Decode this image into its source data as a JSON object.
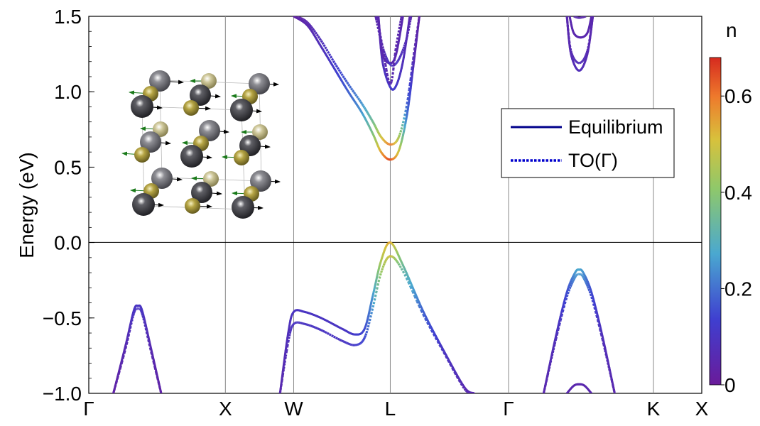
{
  "chart_data": {
    "type": "line",
    "title": "",
    "ylabel": "Energy (eV)",
    "xlabel": "",
    "ylim": [
      -1.0,
      1.5
    ],
    "yticks": [
      -1.0,
      -0.5,
      0.0,
      0.5,
      1.0,
      1.5
    ],
    "ytick_labels": [
      "−1.0",
      "−0.5",
      "0.0",
      "0.5",
      "1.0",
      "1.5"
    ],
    "kpath": [
      {
        "label": "Γ",
        "pos": 0.0
      },
      {
        "label": "X",
        "pos": 1.0
      },
      {
        "label": "W",
        "pos": 1.5
      },
      {
        "label": "L",
        "pos": 2.2071
      },
      {
        "label": "Γ",
        "pos": 3.0731
      },
      {
        "label": "K",
        "pos": 4.1338
      },
      {
        "label": "X",
        "pos": 4.4874
      }
    ],
    "colorbar": {
      "label": "n",
      "range": [
        0,
        0.68
      ],
      "ticks": [
        0,
        0.2,
        0.4,
        0.6
      ],
      "tick_labels": [
        "0",
        "0.2",
        "0.4",
        "0.6"
      ],
      "colormap": "rainbow"
    },
    "legend": {
      "position": "right-upper",
      "entries": [
        {
          "label": "Equilibrium",
          "style": "solid",
          "color": "#00008b"
        },
        {
          "label": "TO(Γ)",
          "style": "dotted",
          "color": "#0000cd"
        }
      ]
    },
    "series": [
      {
        "name": "Equilibrium",
        "style": "solid",
        "bands": [
          {
            "x": [
              0.18,
              0.27,
              0.33,
              0.36,
              0.39,
              0.45,
              0.53
            ],
            "y": [
              -1.0,
              -0.68,
              -0.45,
              -0.42,
              -0.45,
              -0.68,
              -1.0
            ],
            "n": [
              0.03,
              0.06,
              0.1,
              0.1,
              0.1,
              0.06,
              0.03
            ]
          },
          {
            "x": [
              1.4,
              1.46,
              1.5,
              1.58,
              1.7,
              1.85,
              1.95,
              2.02,
              2.08,
              2.14,
              2.2071,
              2.3,
              2.45,
              2.6,
              2.75,
              2.82
            ],
            "y": [
              -1.0,
              -0.6,
              -0.46,
              -0.46,
              -0.5,
              -0.57,
              -0.61,
              -0.57,
              -0.35,
              -0.12,
              0.0,
              -0.15,
              -0.46,
              -0.72,
              -0.96,
              -1.0
            ],
            "n": [
              0.05,
              0.08,
              0.1,
              0.1,
              0.1,
              0.1,
              0.12,
              0.15,
              0.25,
              0.45,
              0.55,
              0.35,
              0.18,
              0.1,
              0.06,
              0.05
            ]
          },
          {
            "x": [
              3.33,
              3.42,
              3.5,
              3.56,
              3.59,
              3.62,
              3.68,
              3.76,
              3.85
            ],
            "y": [
              -1.0,
              -0.62,
              -0.33,
              -0.2,
              -0.18,
              -0.2,
              -0.33,
              -0.62,
              -1.0
            ],
            "n": [
              0.05,
              0.08,
              0.15,
              0.25,
              0.28,
              0.25,
              0.15,
              0.08,
              0.05
            ]
          },
          {
            "x": [
              3.5,
              3.55,
              3.59,
              3.63,
              3.68
            ],
            "y": [
              -1.0,
              -0.95,
              -0.94,
              -0.95,
              -1.0
            ],
            "n": [
              0.05,
              0.05,
              0.05,
              0.05,
              0.05
            ]
          },
          {
            "x": [
              1.5,
              1.6,
              1.7,
              1.8,
              1.9,
              2.0,
              2.08,
              2.14,
              2.2071,
              2.27,
              2.33,
              2.38,
              2.42
            ],
            "y": [
              1.5,
              1.44,
              1.3,
              1.15,
              1.0,
              0.86,
              0.72,
              0.6,
              0.55,
              0.61,
              0.85,
              1.2,
              1.5
            ],
            "n": [
              0.03,
              0.05,
              0.08,
              0.12,
              0.18,
              0.25,
              0.38,
              0.55,
              0.65,
              0.5,
              0.2,
              0.06,
              0.03
            ]
          },
          {
            "x": [
              2.12,
              2.15,
              2.2071,
              2.25,
              2.3,
              2.35
            ],
            "y": [
              1.5,
              1.2,
              1.03,
              1.04,
              1.2,
              1.5
            ],
            "n": [
              0.05,
              0.08,
              0.12,
              0.12,
              0.08,
              0.05
            ]
          },
          {
            "x": [
              2.12,
              2.15,
              2.2071,
              2.25,
              2.3
            ],
            "y": [
              1.5,
              1.25,
              1.19,
              1.25,
              1.5
            ],
            "n": [
              0.05,
              0.05,
              0.05,
              0.05,
              0.05
            ]
          },
          {
            "x": [
              3.5,
              3.53,
              3.59,
              3.65,
              3.69
            ],
            "y": [
              1.5,
              1.25,
              1.14,
              1.25,
              1.5
            ],
            "n": [
              0.05,
              0.06,
              0.08,
              0.06,
              0.05
            ]
          },
          {
            "x": [
              3.52,
              3.55,
              3.6,
              3.65,
              3.68
            ],
            "y": [
              1.5,
              1.39,
              1.36,
              1.39,
              1.5
            ],
            "n": [
              0.05,
              0.05,
              0.05,
              0.05,
              0.05
            ]
          }
        ]
      },
      {
        "name": "TO(Γ)",
        "style": "dotted",
        "bands": [
          {
            "x": [
              0.18,
              0.27,
              0.33,
              0.36,
              0.39,
              0.45,
              0.53
            ],
            "y": [
              -1.0,
              -0.7,
              -0.47,
              -0.44,
              -0.47,
              -0.7,
              -1.0
            ],
            "n": [
              0.03,
              0.06,
              0.1,
              0.1,
              0.1,
              0.06,
              0.03
            ]
          },
          {
            "x": [
              1.4,
              1.46,
              1.5,
              1.58,
              1.7,
              1.85,
              1.95,
              2.02,
              2.08,
              2.14,
              2.2071,
              2.3,
              2.45,
              2.6,
              2.75,
              2.82
            ],
            "y": [
              -1.0,
              -0.66,
              -0.54,
              -0.54,
              -0.58,
              -0.65,
              -0.68,
              -0.63,
              -0.43,
              -0.2,
              -0.09,
              -0.19,
              -0.48,
              -0.73,
              -0.97,
              -1.0
            ],
            "n": [
              0.05,
              0.08,
              0.1,
              0.1,
              0.1,
              0.1,
              0.12,
              0.15,
              0.25,
              0.42,
              0.5,
              0.33,
              0.18,
              0.1,
              0.06,
              0.05
            ]
          },
          {
            "x": [
              3.33,
              3.42,
              3.5,
              3.56,
              3.59,
              3.62,
              3.68,
              3.76,
              3.85
            ],
            "y": [
              -1.0,
              -0.64,
              -0.36,
              -0.23,
              -0.21,
              -0.23,
              -0.36,
              -0.64,
              -1.0
            ],
            "n": [
              0.05,
              0.08,
              0.15,
              0.24,
              0.26,
              0.24,
              0.15,
              0.08,
              0.05
            ]
          },
          {
            "x": [
              1.52,
              1.6,
              1.7,
              1.8,
              1.9,
              2.0,
              2.08,
              2.14,
              2.2071,
              2.27,
              2.33,
              2.38,
              2.42
            ],
            "y": [
              1.5,
              1.46,
              1.34,
              1.19,
              1.05,
              0.92,
              0.8,
              0.7,
              0.65,
              0.7,
              0.92,
              1.25,
              1.5
            ],
            "n": [
              0.03,
              0.05,
              0.08,
              0.12,
              0.18,
              0.25,
              0.36,
              0.5,
              0.6,
              0.45,
              0.18,
              0.06,
              0.03
            ]
          },
          {
            "x": [
              2.1,
              2.15,
              2.2071,
              2.26,
              2.32,
              2.36
            ],
            "y": [
              1.5,
              1.3,
              1.18,
              1.2,
              1.33,
              1.5
            ],
            "n": [
              0.05,
              0.07,
              0.1,
              0.1,
              0.07,
              0.05
            ]
          },
          {
            "x": [
              2.11,
              2.15,
              2.2071,
              2.25,
              2.29
            ],
            "y": [
              1.5,
              1.3,
              1.05,
              1.3,
              1.5
            ],
            "n": [
              0.05,
              0.05,
              0.06,
              0.05,
              0.05
            ]
          },
          {
            "x": [
              3.5,
              3.53,
              3.59,
              3.65,
              3.69
            ],
            "y": [
              1.5,
              1.27,
              1.19,
              1.27,
              1.5
            ],
            "n": [
              0.05,
              0.06,
              0.08,
              0.06,
              0.05
            ]
          },
          {
            "x": [
              3.55,
              3.59,
              3.64
            ],
            "y": [
              1.5,
              1.49,
              1.5
            ],
            "n": [
              0.05,
              0.05,
              0.05
            ]
          }
        ]
      }
    ]
  }
}
